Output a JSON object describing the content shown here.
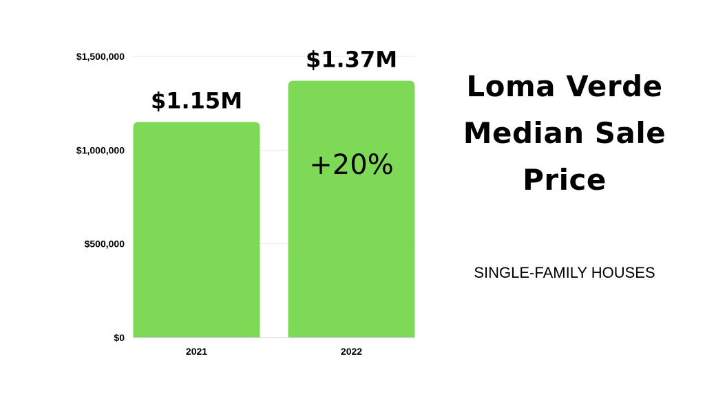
{
  "title_lines": [
    "Loma Verde",
    "Median Sale",
    "Price"
  ],
  "subtitle": "SINGLE-FAMILY HOUSES",
  "colors": {
    "bar": "#7ed957",
    "text": "#000000",
    "grid": "#e6e6e6",
    "background": "#ffffff"
  },
  "chart_data": {
    "type": "bar",
    "categories": [
      "2021",
      "2022"
    ],
    "values": [
      1150000,
      1370000
    ],
    "data_labels": [
      "$1.15M",
      "$1.37M"
    ],
    "annotation": "+20%",
    "ylim": [
      0,
      1500000
    ],
    "yticks": [
      0,
      500000,
      1000000,
      1500000
    ],
    "ytick_labels": [
      "$0",
      "$500,000",
      "$1,000,000",
      "$1,500,000"
    ],
    "grid": true,
    "legend": false
  }
}
